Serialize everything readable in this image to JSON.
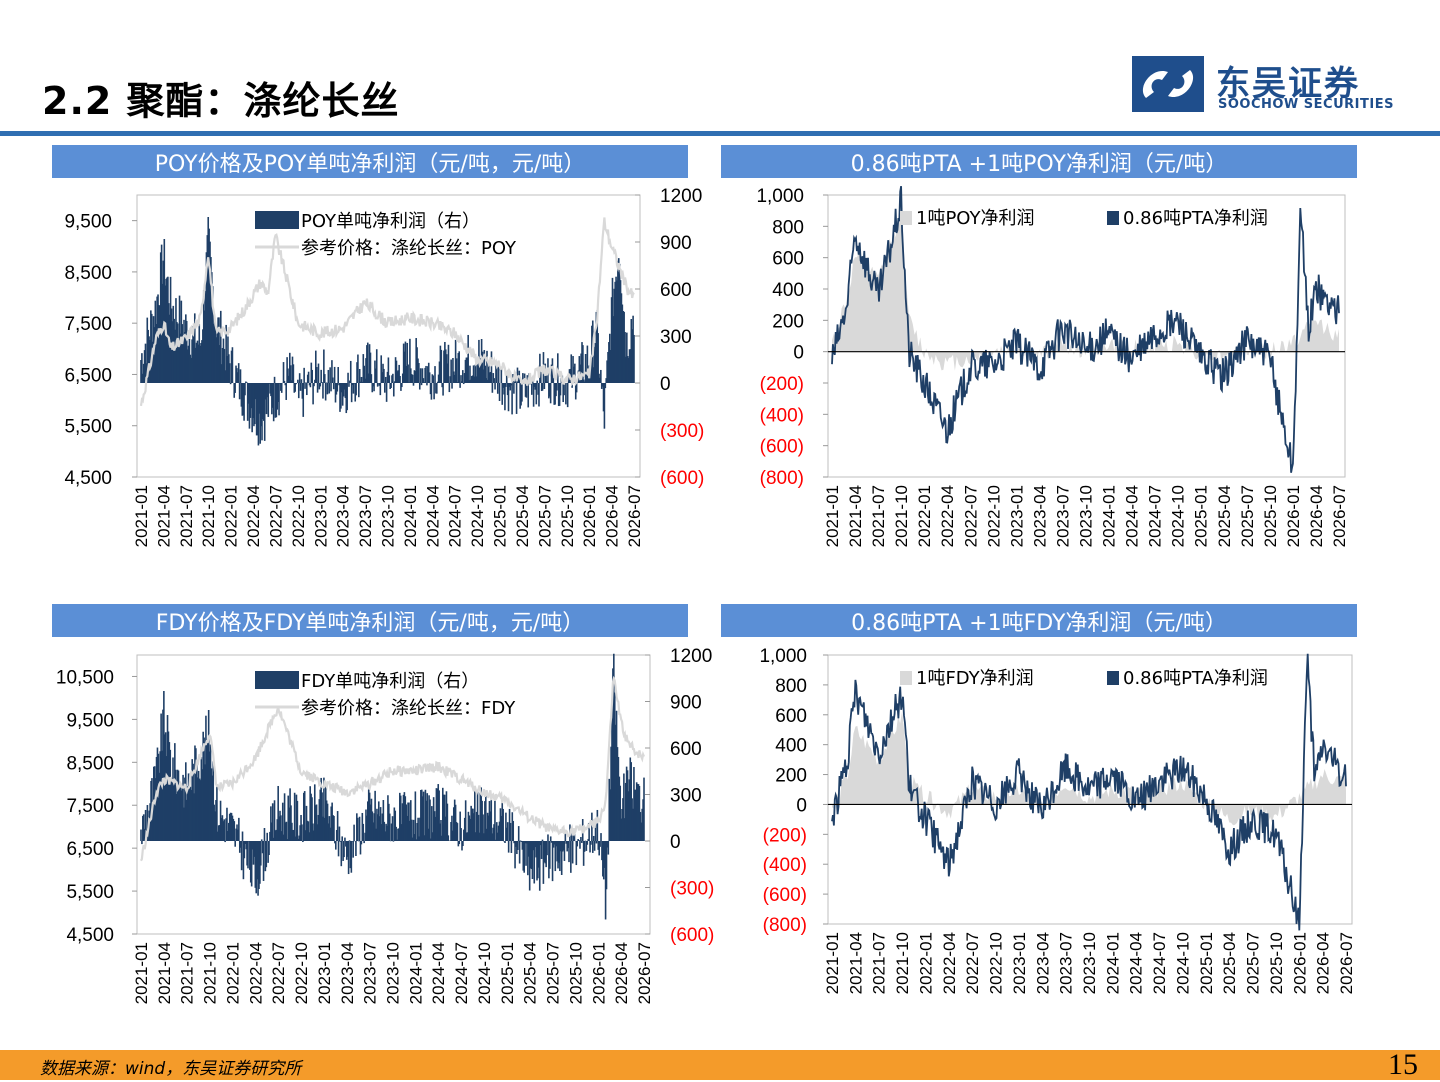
{
  "page": {
    "title": "2.2 聚酯：涤纶长丝",
    "logo_cn": "东吴证券",
    "logo_en": "SOOCHOW SECURITIES",
    "source": "数据来源：wind，东吴证券研究所",
    "page_number": "15"
  },
  "colors": {
    "accent": "#2f6fb2",
    "header_bg": "#5b8fd6",
    "footer": "#f49b2a",
    "profit": "#1f3f66",
    "price": "#d9d9d9",
    "negative_label": "#ff0000"
  },
  "headers": {
    "h1": "POY价格及POY单吨净利润（元/吨，元/吨）",
    "h2": "0.86吨PTA +1吨POY净利润（元/吨）",
    "h3": "FDY价格及FDY单吨净利润（元/吨，元/吨）",
    "h4": "0.86吨PTA +1吨FDY净利润（元/吨）"
  },
  "chart_data": [
    {
      "type": "area",
      "id": "poy",
      "x_ticks": [
        "2021-01",
        "2021-04",
        "2021-07",
        "2021-10",
        "2022-01",
        "2022-04",
        "2022-07",
        "2022-10",
        "2023-01",
        "2023-04",
        "2023-07",
        "2023-10",
        "2024-01",
        "2024-04",
        "2024-07",
        "2024-10",
        "2025-01",
        "2025-04",
        "2025-07",
        "2025-10",
        "2026-01",
        "2026-04",
        "2026-07"
      ],
      "left_ticks": [
        "9,500",
        "8,500",
        "7,500",
        "6,500",
        "5,500",
        "4,500"
      ],
      "left_ylim": [
        4500,
        10000
      ],
      "right_ticks": [
        "1200",
        "900",
        "600",
        "300",
        "0",
        "(300)",
        "(600)"
      ],
      "right_ylim": [
        -600,
        1200
      ],
      "legend_position": "top",
      "series": [
        {
          "name": "POY单吨净利润（右）",
          "kind": "area",
          "axis": "right",
          "x": [
            "2021-01",
            "2021-03",
            "2021-04",
            "2021-05",
            "2021-07",
            "2021-09",
            "2021-10",
            "2021-11",
            "2022-01",
            "2022-03",
            "2022-05",
            "2022-07",
            "2022-09",
            "2022-10",
            "2023-01",
            "2023-04",
            "2023-07",
            "2023-10",
            "2024-01",
            "2024-04",
            "2024-07",
            "2024-10",
            "2025-01",
            "2025-04",
            "2025-07",
            "2025-10",
            "2026-01",
            "2026-02",
            "2026-03",
            "2026-04",
            "2026-05",
            "2026-06",
            "2026-07"
          ],
          "values": [
            150,
            480,
            800,
            500,
            350,
            250,
            900,
            400,
            120,
            -100,
            -250,
            -80,
            60,
            -120,
            80,
            -60,
            120,
            0,
            150,
            60,
            120,
            180,
            20,
            -80,
            50,
            0,
            150,
            350,
            -250,
            450,
            900,
            250,
            450
          ]
        },
        {
          "name": "参考价格：涤纶长丝：POY",
          "kind": "line",
          "axis": "left",
          "x": [
            "2021-01",
            "2021-03",
            "2021-04",
            "2021-05",
            "2021-07",
            "2021-09",
            "2021-10",
            "2021-11",
            "2022-01",
            "2022-03",
            "2022-05",
            "2022-06",
            "2022-07",
            "2022-09",
            "2022-10",
            "2023-01",
            "2023-04",
            "2023-07",
            "2023-10",
            "2024-01",
            "2024-04",
            "2024-07",
            "2024-10",
            "2025-01",
            "2025-04",
            "2025-07",
            "2025-10",
            "2026-01",
            "2026-02",
            "2026-03",
            "2026-04",
            "2026-05",
            "2026-06",
            "2026-07"
          ],
          "values": [
            5900,
            7200,
            7500,
            7000,
            7200,
            7600,
            8900,
            7300,
            7400,
            7800,
            8300,
            8100,
            9200,
            8100,
            7500,
            7300,
            7400,
            7900,
            7500,
            7600,
            7500,
            7300,
            6800,
            6700,
            6300,
            6600,
            6400,
            6500,
            7500,
            9500,
            9000,
            8600,
            8200,
            8000
          ]
        }
      ]
    },
    {
      "type": "area",
      "id": "poy_pta",
      "x_ticks": [
        "2021-01",
        "2021-04",
        "2021-07",
        "2021-10",
        "2022-01",
        "2022-04",
        "2022-07",
        "2022-10",
        "2023-01",
        "2023-04",
        "2023-07",
        "2023-10",
        "2024-01",
        "2024-04",
        "2024-07",
        "2024-10",
        "2025-01",
        "2025-04",
        "2025-07",
        "2025-10",
        "2026-01",
        "2026-04",
        "2026-07"
      ],
      "y_ticks": [
        "1,000",
        "800",
        "600",
        "400",
        "200",
        "0",
        "(200)",
        "(400)",
        "(600)",
        "(800)"
      ],
      "ylim": [
        -800,
        1000
      ],
      "legend_position": "top",
      "series": [
        {
          "name": "1吨POY净利润",
          "kind": "area",
          "x": [
            "2021-01",
            "2021-03",
            "2021-04",
            "2021-07",
            "2021-10",
            "2021-11",
            "2022-01",
            "2022-04",
            "2022-07",
            "2022-10",
            "2023-01",
            "2023-04",
            "2023-07",
            "2023-10",
            "2024-01",
            "2024-04",
            "2024-07",
            "2024-10",
            "2025-01",
            "2025-04",
            "2025-07",
            "2025-10",
            "2026-01",
            "2026-04",
            "2026-07"
          ],
          "values": [
            50,
            350,
            600,
            450,
            900,
            200,
            0,
            -80,
            -40,
            0,
            30,
            -30,
            50,
            0,
            50,
            20,
            40,
            60,
            -10,
            -40,
            30,
            0,
            60,
            200,
            100
          ]
        },
        {
          "name": "0.86吨PTA净利润",
          "kind": "line",
          "x": [
            "2021-01",
            "2021-03",
            "2021-04",
            "2021-07",
            "2021-10",
            "2021-11",
            "2022-01",
            "2022-04",
            "2022-07",
            "2022-10",
            "2023-01",
            "2023-04",
            "2023-07",
            "2023-10",
            "2024-01",
            "2024-04",
            "2024-07",
            "2024-10",
            "2025-01",
            "2025-04",
            "2025-07",
            "2025-10",
            "2026-01",
            "2026-02",
            "2026-03",
            "2026-04",
            "2026-07"
          ],
          "values": [
            -50,
            300,
            750,
            350,
            950,
            0,
            -200,
            -500,
            -100,
            -80,
            50,
            -100,
            150,
            0,
            120,
            -50,
            100,
            200,
            -40,
            -150,
            80,
            -50,
            -750,
            900,
            150,
            400,
            250
          ]
        }
      ]
    },
    {
      "type": "area",
      "id": "fdy",
      "x_ticks": [
        "2021-01",
        "2021-04",
        "2021-07",
        "2021-10",
        "2022-01",
        "2022-04",
        "2022-07",
        "2022-10",
        "2023-01",
        "2023-04",
        "2023-07",
        "2023-10",
        "2024-01",
        "2024-04",
        "2024-07",
        "2024-10",
        "2025-01",
        "2025-04",
        "2025-07",
        "2025-10",
        "2026-01",
        "2026-04",
        "2026-07"
      ],
      "left_ticks": [
        "10,500",
        "9,500",
        "8,500",
        "7,500",
        "6,500",
        "5,500",
        "4,500"
      ],
      "left_ylim": [
        4500,
        11000
      ],
      "right_ticks": [
        "1200",
        "900",
        "600",
        "300",
        "0",
        "(300)",
        "(600)"
      ],
      "right_ylim": [
        -600,
        1200
      ],
      "legend_position": "top",
      "series": [
        {
          "name": "FDY单吨净利润（右）",
          "kind": "area",
          "axis": "right",
          "x": [
            "2021-01",
            "2021-03",
            "2021-04",
            "2021-05",
            "2021-07",
            "2021-10",
            "2021-11",
            "2022-01",
            "2022-04",
            "2022-07",
            "2022-10",
            "2023-01",
            "2023-04",
            "2023-07",
            "2023-10",
            "2024-01",
            "2024-04",
            "2024-07",
            "2024-10",
            "2025-01",
            "2025-04",
            "2025-07",
            "2025-10",
            "2026-01",
            "2026-02",
            "2026-03",
            "2026-04",
            "2026-05",
            "2026-07"
          ],
          "values": [
            50,
            400,
            800,
            500,
            350,
            700,
            200,
            80,
            -250,
            200,
            150,
            250,
            -100,
            200,
            150,
            150,
            200,
            100,
            200,
            100,
            -200,
            -100,
            -50,
            100,
            -400,
            1100,
            200,
            400,
            250
          ]
        },
        {
          "name": "参考价格：涤纶长丝：FDY",
          "kind": "line",
          "axis": "left",
          "x": [
            "2021-01",
            "2021-03",
            "2021-04",
            "2021-07",
            "2021-10",
            "2021-11",
            "2022-01",
            "2022-04",
            "2022-07",
            "2022-10",
            "2023-01",
            "2023-04",
            "2023-07",
            "2023-10",
            "2024-01",
            "2024-04",
            "2024-07",
            "2024-10",
            "2025-01",
            "2025-04",
            "2025-07",
            "2025-10",
            "2026-01",
            "2026-02",
            "2026-03",
            "2026-04",
            "2026-05",
            "2026-07"
          ],
          "values": [
            6200,
            7800,
            8100,
            7900,
            9200,
            7900,
            8000,
            8600,
            9800,
            8300,
            8000,
            7800,
            8000,
            8300,
            8300,
            8400,
            8100,
            7800,
            7600,
            7200,
            6900,
            6900,
            7100,
            7600,
            10500,
            9400,
            8900,
            8600
          ]
        }
      ]
    },
    {
      "type": "area",
      "id": "fdy_pta",
      "x_ticks": [
        "2021-01",
        "2021-04",
        "2021-07",
        "2021-10",
        "2022-01",
        "2022-04",
        "2022-07",
        "2022-10",
        "2023-01",
        "2023-04",
        "2023-07",
        "2023-10",
        "2024-01",
        "2024-04",
        "2024-07",
        "2024-10",
        "2025-01",
        "2025-04",
        "2025-07",
        "2025-10",
        "2026-01",
        "2026-04",
        "2026-07"
      ],
      "y_ticks": [
        "1,000",
        "800",
        "600",
        "400",
        "200",
        "0",
        "(200)",
        "(400)",
        "(600)",
        "(800)"
      ],
      "ylim": [
        -800,
        1000
      ],
      "legend_position": "top",
      "series": [
        {
          "name": "1吨FDY净利润",
          "kind": "area",
          "x": [
            "2021-01",
            "2021-03",
            "2021-04",
            "2021-07",
            "2021-10",
            "2021-11",
            "2022-01",
            "2022-04",
            "2022-07",
            "2022-10",
            "2023-01",
            "2023-04",
            "2023-07",
            "2023-10",
            "2024-01",
            "2024-04",
            "2024-07",
            "2024-10",
            "2025-01",
            "2025-04",
            "2025-07",
            "2025-10",
            "2026-01",
            "2026-04",
            "2026-07"
          ],
          "values": [
            -50,
            200,
            500,
            300,
            600,
            150,
            50,
            -50,
            100,
            50,
            100,
            0,
            150,
            50,
            100,
            80,
            100,
            150,
            0,
            -100,
            -50,
            -80,
            50,
            200,
            150
          ]
        },
        {
          "name": "0.86吨PTA净利润",
          "kind": "line",
          "x": [
            "2021-01",
            "2021-03",
            "2021-04",
            "2021-07",
            "2021-10",
            "2021-11",
            "2022-01",
            "2022-04",
            "2022-07",
            "2022-10",
            "2023-01",
            "2023-04",
            "2023-07",
            "2023-10",
            "2024-01",
            "2024-04",
            "2024-07",
            "2024-10",
            "2025-01",
            "2025-04",
            "2025-07",
            "2025-10",
            "2026-01",
            "2026-02",
            "2026-03",
            "2026-04",
            "2026-07"
          ],
          "values": [
            -100,
            300,
            750,
            350,
            750,
            100,
            -100,
            -400,
            150,
            0,
            200,
            -50,
            250,
            100,
            200,
            0,
            150,
            250,
            50,
            -300,
            -100,
            -200,
            -800,
            1000,
            150,
            400,
            150
          ]
        }
      ]
    }
  ]
}
